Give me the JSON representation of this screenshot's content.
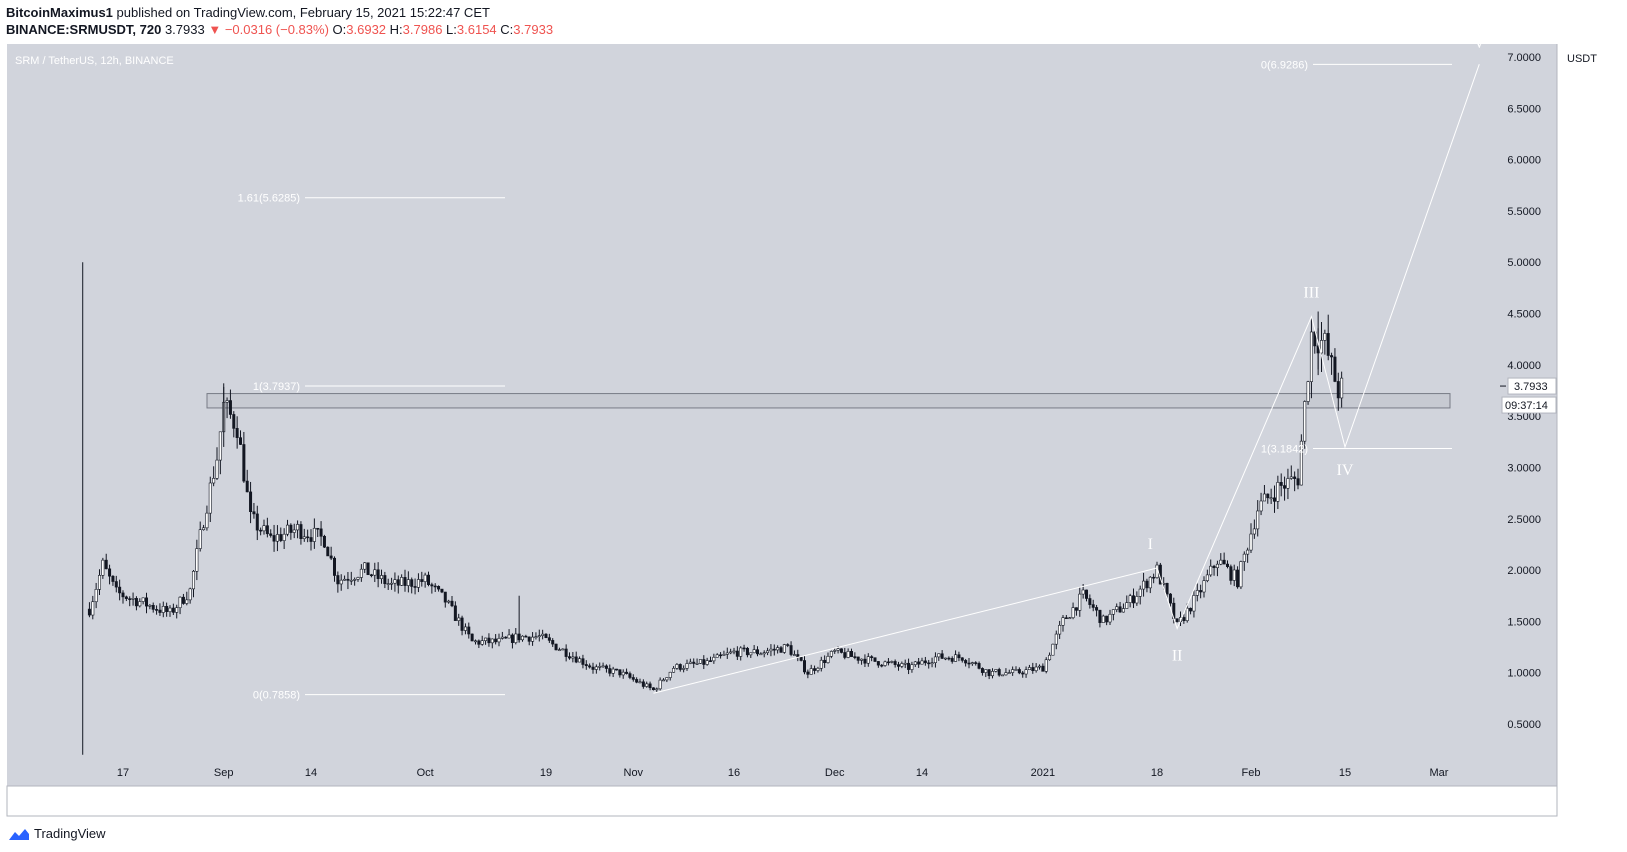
{
  "header": {
    "author": "BitcoinMaximus1",
    "published": "published on TradingView.com, February 15, 2021 15:22:47 CET",
    "symbol": "BINANCE:SRMUSDT, 720",
    "last": "3.7933",
    "change_arrow": "▼",
    "change": "−0.0316 (−0.83%)",
    "open_label": "O:",
    "open": "3.6932",
    "high_label": "H:",
    "high": "3.7986",
    "low_label": "L:",
    "low": "3.6154",
    "close_label": "C:",
    "close": "3.7933"
  },
  "footer": {
    "brand": "TradingView",
    "logo_icon": "tradingview-logo-icon"
  },
  "colors": {
    "background": "#d1d4dc",
    "candle": "#131722",
    "annotation": "#ffffff",
    "negative": "#ef5350",
    "box_fill": "#c4c7cf"
  },
  "chart_data": {
    "type": "candlestick",
    "title": "SRM / TetherUS, 12h, BINANCE",
    "currency": "USDT",
    "ylim": [
      0.2,
      7.2
    ],
    "y_ticks": [
      "7.0000",
      "6.5000",
      "6.0000",
      "5.5000",
      "5.0000",
      "4.5000",
      "4.0000",
      "3.5000",
      "3.0000",
      "2.5000",
      "2.0000",
      "1.5000",
      "1.0000",
      "0.5000"
    ],
    "x_ticks": [
      "17",
      "Sep",
      "14",
      "Oct",
      "19",
      "Nov",
      "16",
      "Dec",
      "14",
      "2021",
      "18",
      "Feb",
      "15",
      "Mar"
    ],
    "price_label": "3.7933",
    "countdown": "09:37:14",
    "fib_left": [
      {
        "label": "1.61(5.6285)",
        "value": 5.6285
      },
      {
        "label": "1(3.7937)",
        "value": 3.7937
      },
      {
        "label": "0(0.7858)",
        "value": 0.7858
      }
    ],
    "fib_right": [
      {
        "label": "0(6.9286)",
        "value": 6.9286
      },
      {
        "label": "1(3.1842)",
        "value": 3.1842
      }
    ],
    "resistance_zone": [
      3.58,
      3.72
    ],
    "waves": [
      {
        "label": "I",
        "value": 2.03
      },
      {
        "label": "II",
        "value": 1.43
      },
      {
        "label": "III",
        "value": 4.52
      },
      {
        "label": "IV",
        "value": 3.2
      },
      {
        "label": "V",
        "value": 6.93
      }
    ],
    "wave_path": [
      {
        "date": "2020-11-04",
        "price": 0.8
      },
      {
        "date": "2021-01-18",
        "price": 2.02
      },
      {
        "date": "2021-01-21",
        "price": 1.43
      },
      {
        "date": "2021-02-10",
        "price": 4.47
      },
      {
        "date": "2021-02-15",
        "price": 3.2
      },
      {
        "date": "2021-03-07",
        "price": 6.93
      }
    ],
    "price_series_approx": [
      [
        "2020-08-11",
        5.0
      ],
      [
        "2020-08-11",
        0.2
      ],
      [
        "2020-08-12",
        1.62
      ],
      [
        "2020-08-14",
        2.05
      ],
      [
        "2020-08-16",
        1.78
      ],
      [
        "2020-08-20",
        1.68
      ],
      [
        "2020-08-24",
        1.58
      ],
      [
        "2020-08-27",
        1.8
      ],
      [
        "2020-08-29",
        2.5
      ],
      [
        "2020-08-31",
        3.1
      ],
      [
        "2020-09-01",
        3.6
      ],
      [
        "2020-09-03",
        3.4
      ],
      [
        "2020-09-05",
        2.5
      ],
      [
        "2020-09-08",
        2.3
      ],
      [
        "2020-09-12",
        2.4
      ],
      [
        "2020-09-16",
        2.3
      ],
      [
        "2020-09-18",
        1.9
      ],
      [
        "2020-09-22",
        2.0
      ],
      [
        "2020-09-26",
        1.85
      ],
      [
        "2020-10-01",
        1.9
      ],
      [
        "2020-10-04",
        1.7
      ],
      [
        "2020-10-08",
        1.3
      ],
      [
        "2020-10-12",
        1.3
      ],
      [
        "2020-10-15",
        1.35
      ],
      [
        "2020-10-18",
        1.35
      ],
      [
        "2020-10-22",
        1.2
      ],
      [
        "2020-10-26",
        1.05
      ],
      [
        "2020-10-30",
        1.0
      ],
      [
        "2020-11-04",
        0.83
      ],
      [
        "2020-11-07",
        1.05
      ],
      [
        "2020-11-12",
        1.1
      ],
      [
        "2020-11-16",
        1.2
      ],
      [
        "2020-11-20",
        1.2
      ],
      [
        "2020-11-24",
        1.25
      ],
      [
        "2020-11-27",
        1.0
      ],
      [
        "2020-12-01",
        1.2
      ],
      [
        "2020-12-04",
        1.15
      ],
      [
        "2020-12-08",
        1.1
      ],
      [
        "2020-12-12",
        1.05
      ],
      [
        "2020-12-16",
        1.15
      ],
      [
        "2020-12-20",
        1.15
      ],
      [
        "2020-12-24",
        1.0
      ],
      [
        "2020-12-28",
        1.0
      ],
      [
        "2021-01-01",
        1.05
      ],
      [
        "2021-01-04",
        1.5
      ],
      [
        "2021-01-07",
        1.75
      ],
      [
        "2021-01-10",
        1.5
      ],
      [
        "2021-01-14",
        1.7
      ],
      [
        "2021-01-18",
        2.0
      ],
      [
        "2021-01-21",
        1.45
      ],
      [
        "2021-01-24",
        1.75
      ],
      [
        "2021-01-27",
        2.1
      ],
      [
        "2021-01-30",
        1.9
      ],
      [
        "2021-02-02",
        2.6
      ],
      [
        "2021-02-05",
        2.8
      ],
      [
        "2021-02-08",
        2.9
      ],
      [
        "2021-02-10",
        4.3
      ],
      [
        "2021-02-12",
        4.2
      ],
      [
        "2021-02-14",
        3.75
      ],
      [
        "2021-02-15",
        3.7933
      ]
    ]
  }
}
